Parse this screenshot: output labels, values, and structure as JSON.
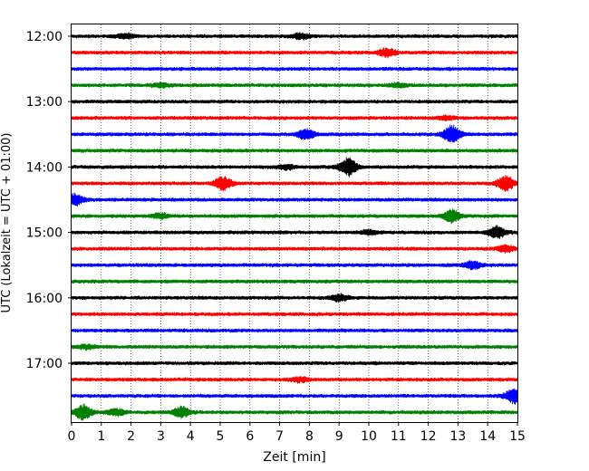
{
  "chart_data": {
    "type": "line",
    "title": "",
    "xlabel": "Zeit  [min]",
    "ylabel": "UTC (Lokalzeit = UTC + 01:00)",
    "xlim": [
      0,
      15
    ],
    "x_ticks": [
      0,
      1,
      2,
      3,
      4,
      5,
      6,
      7,
      8,
      9,
      10,
      11,
      12,
      13,
      14,
      15
    ],
    "y_tick_labels": [
      "12:00",
      "13:00",
      "14:00",
      "15:00",
      "16:00",
      "17:00"
    ],
    "trace_interval_minutes": 15,
    "grid": "vertical dotted",
    "trace_colors": [
      "#000000",
      "#ff0000",
      "#0000ff",
      "#008000"
    ],
    "traces": [
      {
        "start": "12:00",
        "color": "#000000",
        "events": [
          {
            "t": 1.8,
            "amp": 0.6
          },
          {
            "t": 7.7,
            "amp": 0.7
          }
        ]
      },
      {
        "start": "12:15",
        "color": "#ff0000",
        "events": [
          {
            "t": 10.6,
            "amp": 1.0
          }
        ]
      },
      {
        "start": "12:30",
        "color": "#0000ff",
        "events": []
      },
      {
        "start": "12:45",
        "color": "#008000",
        "events": [
          {
            "t": 3.0,
            "amp": 0.5
          },
          {
            "t": 11.0,
            "amp": 0.5
          }
        ]
      },
      {
        "start": "13:00",
        "color": "#000000",
        "events": []
      },
      {
        "start": "13:15",
        "color": "#ff0000",
        "events": [
          {
            "t": 12.6,
            "amp": 0.5
          }
        ]
      },
      {
        "start": "13:30",
        "color": "#0000ff",
        "events": [
          {
            "t": 7.9,
            "amp": 1.3
          },
          {
            "t": 12.8,
            "amp": 2.2
          }
        ]
      },
      {
        "start": "13:45",
        "color": "#008000",
        "events": []
      },
      {
        "start": "14:00",
        "color": "#000000",
        "events": [
          {
            "t": 9.3,
            "amp": 2.2
          },
          {
            "t": 7.2,
            "amp": 0.6
          }
        ]
      },
      {
        "start": "14:15",
        "color": "#ff0000",
        "events": [
          {
            "t": 5.1,
            "amp": 1.6
          },
          {
            "t": 14.6,
            "amp": 1.8
          }
        ]
      },
      {
        "start": "14:30",
        "color": "#0000ff",
        "events": [
          {
            "t": 0.1,
            "amp": 1.4
          }
        ]
      },
      {
        "start": "14:45",
        "color": "#008000",
        "events": [
          {
            "t": 3.0,
            "amp": 0.6
          },
          {
            "t": 12.8,
            "amp": 1.6
          }
        ]
      },
      {
        "start": "15:00",
        "color": "#000000",
        "events": [
          {
            "t": 14.3,
            "amp": 1.5
          },
          {
            "t": 10.0,
            "amp": 0.5
          }
        ]
      },
      {
        "start": "15:15",
        "color": "#ff0000",
        "events": [
          {
            "t": 14.6,
            "amp": 0.8
          }
        ]
      },
      {
        "start": "15:30",
        "color": "#0000ff",
        "events": [
          {
            "t": 13.5,
            "amp": 1.0
          }
        ]
      },
      {
        "start": "15:45",
        "color": "#008000",
        "events": []
      },
      {
        "start": "16:00",
        "color": "#000000",
        "events": [
          {
            "t": 9.0,
            "amp": 0.8
          }
        ]
      },
      {
        "start": "16:15",
        "color": "#ff0000",
        "events": []
      },
      {
        "start": "16:30",
        "color": "#0000ff",
        "events": []
      },
      {
        "start": "16:45",
        "color": "#008000",
        "events": [
          {
            "t": 0.5,
            "amp": 0.5
          }
        ]
      },
      {
        "start": "17:00",
        "color": "#000000",
        "events": []
      },
      {
        "start": "17:15",
        "color": "#ff0000",
        "events": [
          {
            "t": 7.7,
            "amp": 0.6
          }
        ]
      },
      {
        "start": "17:30",
        "color": "#0000ff",
        "events": [
          {
            "t": 14.9,
            "amp": 2.0
          }
        ]
      },
      {
        "start": "17:45",
        "color": "#008000",
        "events": [
          {
            "t": 0.4,
            "amp": 1.8
          },
          {
            "t": 1.5,
            "amp": 0.8
          },
          {
            "t": 3.7,
            "amp": 1.3
          }
        ]
      }
    ]
  }
}
